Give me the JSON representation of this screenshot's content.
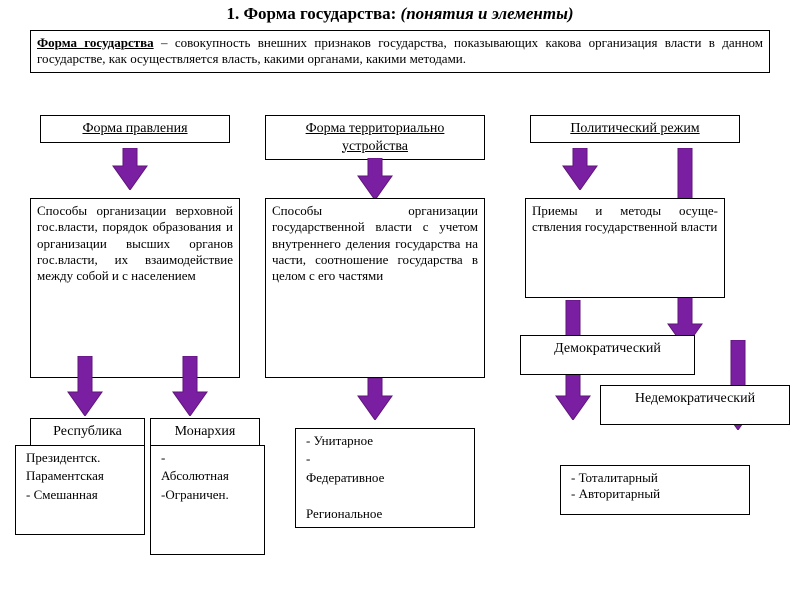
{
  "colors": {
    "arrow_fill": "#7b1fa2",
    "arrow_edge": "#5e1578",
    "box_border": "#000000",
    "bg": "#ffffff"
  },
  "title": {
    "prefix": "1. Форма государства: ",
    "suffix": "(понятия и элементы)"
  },
  "definition": {
    "lead": "Форма государства",
    "text": " – совокупность внешних признаков государства, показывающих какова организация власти в данном государстве, как осуществляется власть, какими органами, какими методами."
  },
  "col1": {
    "header": "Форма правления",
    "desc": "Способы организации верховной гос.власти, порядок образования и организации высших органов гос.власти, их взаимодействие между собой и с населением",
    "sub1": {
      "label": "Республика",
      "items": [
        "Президентск.",
        "Параментская",
        "Смешанная"
      ]
    },
    "sub2": {
      "label": "Монархия",
      "items": [
        "Абсолютная",
        "Ограничен."
      ]
    }
  },
  "col2": {
    "header": "Форма территориально устройства",
    "desc": "Способы организации государственной власти с учетом внутреннего деления государства на части, соотношение государства в целом с его частями",
    "items": [
      "Унитарное",
      "Федеративное",
      "Региональное"
    ]
  },
  "col3": {
    "header": "Политический режим",
    "desc": "Приемы и методы осуще-ствления государственной власти",
    "sub1": "Демократический",
    "sub2": "Недемократический",
    "items": [
      "Тоталитарный",
      "Авторитарный"
    ]
  },
  "layout": {
    "arrow": {
      "head_w": 34,
      "head_h": 24,
      "stem_w": 14,
      "stem_h": 14
    }
  }
}
